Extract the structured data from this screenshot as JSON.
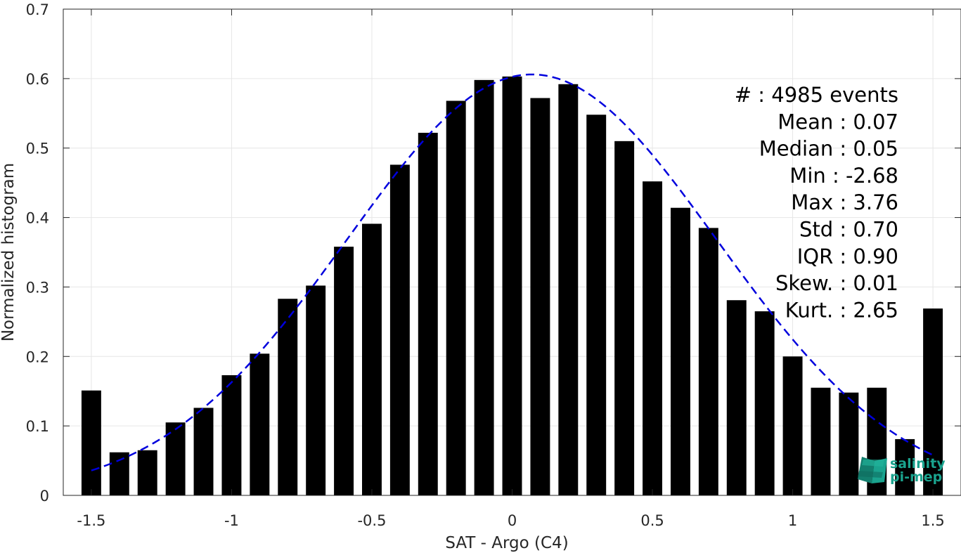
{
  "chart_data": {
    "type": "bar",
    "title": "",
    "xlabel": "SAT - Argo (C4)",
    "ylabel": "Normalized histogram",
    "xlim": [
      -1.6,
      1.6
    ],
    "ylim": [
      0,
      0.7
    ],
    "xticks": [
      -1.5,
      -1,
      -0.5,
      0,
      0.5,
      1,
      1.5
    ],
    "xtick_labels": [
      "-1.5",
      "-1",
      "-0.5",
      "0",
      "0.5",
      "1",
      "1.5"
    ],
    "yticks": [
      0,
      0.1,
      0.2,
      0.3,
      0.4,
      0.5,
      0.6,
      0.7
    ],
    "ytick_labels": [
      "0",
      "0.1",
      "0.2",
      "0.3",
      "0.4",
      "0.5",
      "0.6",
      "0.7"
    ],
    "grid": true,
    "bar_color": "#000000",
    "bar_width": 0.07,
    "x": [
      -1.5,
      -1.4,
      -1.3,
      -1.2,
      -1.1,
      -1.0,
      -0.9,
      -0.8,
      -0.7,
      -0.6,
      -0.5,
      -0.4,
      -0.3,
      -0.2,
      -0.1,
      0.0,
      0.1,
      0.2,
      0.3,
      0.4,
      0.5,
      0.6,
      0.7,
      0.8,
      0.9,
      1.0,
      1.1,
      1.2,
      1.3,
      1.4,
      1.5
    ],
    "values": [
      0.151,
      0.062,
      0.065,
      0.105,
      0.126,
      0.173,
      0.204,
      0.283,
      0.302,
      0.358,
      0.391,
      0.476,
      0.522,
      0.568,
      0.598,
      0.603,
      0.572,
      0.592,
      0.548,
      0.51,
      0.452,
      0.414,
      0.385,
      0.281,
      0.265,
      0.2,
      0.155,
      0.148,
      0.155,
      0.081,
      0.269
    ],
    "fit": {
      "type": "gaussian",
      "color": "#0000dd",
      "style": "dashed",
      "x_range": [
        -1.5,
        1.5
      ],
      "mean": 0.07,
      "std": 0.66,
      "peak": 0.606
    },
    "stats": [
      {
        "label": "#  : 4985 events"
      },
      {
        "label": "Mean : 0.07"
      },
      {
        "label": "Median : 0.05"
      },
      {
        "label": "Min : -2.68"
      },
      {
        "label": "Max : 3.76"
      },
      {
        "label": "Std : 0.70"
      },
      {
        "label": "IQR : 0.90"
      },
      {
        "label": "Skew. : 0.01"
      },
      {
        "label": "Kurt. : 2.65"
      }
    ],
    "logo": {
      "line1": "salinity",
      "line2": "pi-mep",
      "color": "#1aa38e"
    }
  }
}
